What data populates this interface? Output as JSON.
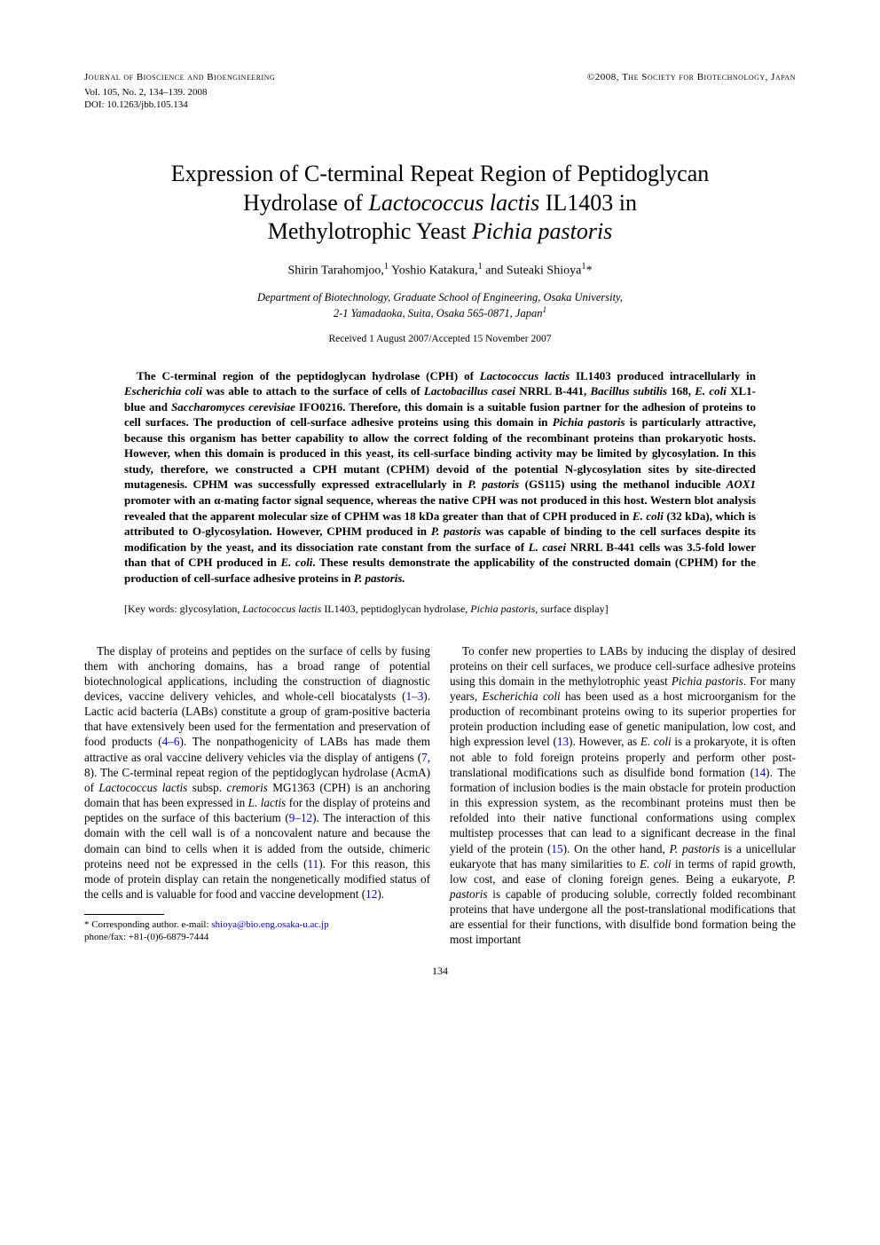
{
  "header": {
    "journal": "Journal of Bioscience and Bioengineering",
    "copyright": "©2008, The Society for Biotechnology, Japan",
    "vol": "Vol. 105, No. 2, 134–139. 2008",
    "doi": "DOI: 10.1263/jbb.105.134"
  },
  "title_lines": {
    "l1": "Expression of C-terminal Repeat Region of Peptidoglycan",
    "l2": "Hydrolase of ",
    "l2_it": "Lactococcus lactis",
    "l2_end": " IL1403 in",
    "l3": "Methylotrophic Yeast ",
    "l3_it": "Pichia pastoris"
  },
  "authors": {
    "a1": "Shirin Tarahomjoo,",
    "a1s": "1",
    "a2": " Yoshio Katakura,",
    "a2s": "1",
    "a3": " and Suteaki Shioya",
    "a3s": "1",
    "star": "*"
  },
  "affiliation": {
    "line1": "Department of Biotechnology, Graduate School of Engineering, Osaka University,",
    "line2": "2-1 Yamadaoka, Suita, Osaka 565-0871, Japan",
    "sup": "1"
  },
  "dates": "Received 1 August 2007/Accepted 15 November 2007",
  "abstract": {
    "t1": "The C-terminal region of the peptidoglycan hydrolase (CPH) of ",
    "it1": "Lactococcus lactis",
    "t2": " IL1403 produced intracellularly in ",
    "it2": "Escherichia coli",
    "t3": " was able to attach to the surface of cells of ",
    "it3": "Lactobacillus casei",
    "t4": " NRRL B-441, ",
    "it4": "Bacillus subtilis",
    "t5": " 168, ",
    "it5": "E. coli",
    "t6": " XL1-blue and ",
    "it6": "Saccharomyces cerevisiae",
    "t7": " IFO0216. Therefore, this domain is a suitable fusion partner for the adhesion of proteins to cell surfaces. The production of cell-surface adhesive proteins using this domain in ",
    "it7": "Pichia pastoris",
    "t8": " is particularly attractive, because this organism has better capability to allow the correct folding of the recombinant proteins than prokaryotic hosts. However, when this domain is produced in this yeast, its cell-surface binding activity may be limited by glycosylation. In this study, therefore, we constructed a CPH mutant (CPHM) devoid of the potential N-glycosylation sites by site-directed mutagenesis. CPHM was successfully expressed extracellularly in ",
    "it8": "P. pastoris",
    "t9": " (GS115) using the methanol inducible ",
    "it9": "AOX1",
    "t10": " promoter with an α-mating factor signal sequence, whereas the native CPH was not produced in this host. Western blot analysis revealed that the apparent molecular size of CPHM was 18 kDa greater than that of CPH produced in ",
    "it10": "E. coli",
    "t11": " (32 kDa), which is attributed to O-glycosylation. However, CPHM produced in ",
    "it11": "P. pastoris",
    "t12": " was capable of binding to the cell surfaces despite its modification by the yeast, and its dissociation rate constant from the surface of ",
    "it12": "L. casei",
    "t13": " NRRL B-441 cells was 3.5-fold lower than that of CPH produced in ",
    "it13": "E. coli",
    "t14": ". These results demonstrate the applicability of the constructed domain (CPHM) for the production of cell-surface adhesive proteins in ",
    "it14": "P. pastoris."
  },
  "keywords": {
    "label": "[Key words: ",
    "t1": "glycosylation, ",
    "it1": "Lactococcus lactis",
    "t2": " IL1403, peptidoglycan hydrolase, ",
    "it2": "Pichia pastoris",
    "t3": ", surface display]"
  },
  "col1": {
    "p1a": "The display of proteins and peptides on the surface of cells by fusing them with anchoring domains, has a broad range of potential biotechnological applications, including the construction of diagnostic devices, vaccine delivery vehicles, and whole-cell biocatalysts (",
    "r1": "1–3",
    "p1b": "). Lactic acid bacteria (LABs) constitute a group of gram-positive bacteria that have extensively been used for the fermentation and preservation of food products (",
    "r2": "4–6",
    "p1c": "). The nonpathogenicity of LABs has made them attractive as oral vaccine delivery vehicles via the display of antigens (",
    "r3": "7",
    "p1d": ", 8). The C-terminal repeat region of the peptidoglycan hydrolase (AcmA) of ",
    "it1": "Lactococcus lactis",
    "p1e": " subsp. ",
    "it2": "cremoris",
    "p1f": " MG1363 (CPH) is an anchoring domain that has been expressed in ",
    "it3": "L. lactis",
    "p1g": " for the display of proteins and peptides on the surface of this bacterium (",
    "r4": "9–12",
    "p1h": "). The interaction of this domain with the cell wall is of a noncovalent nature and because the domain can bind to cells when it is added from the outside, chimeric proteins need not be expressed in the cells (",
    "r5": "11",
    "p1i": "). For this reason, this mode of protein display can retain the nongenetically modified status of the cells and is valuable for food and vaccine development (",
    "r6": "12",
    "p1j": ")."
  },
  "col2": {
    "p1a": "To confer new properties to LABs by inducing the display of desired proteins on their cell surfaces, we produce cell-surface adhesive proteins using this domain in the methylotrophic yeast ",
    "it1": "Pichia pastoris",
    "p1b": ". For many years, ",
    "it2": "Escherichia coli",
    "p1c": " has been used as a host microorganism for the production of recombinant proteins owing to its superior properties for protein production including ease of genetic manipulation, low cost, and high expression level (",
    "r1": "13",
    "p1d": "). However, as ",
    "it3": "E. coli",
    "p1e": " is a prokaryote, it is often not able to fold foreign proteins properly and perform other post-translational modifications such as disulfide bond formation (",
    "r2": "14",
    "p1f": "). The formation of inclusion bodies is the main obstacle for protein production in this expression system, as the recombinant proteins must then be refolded into their native functional conformations using complex multistep processes that can lead to a significant decrease in the final yield of the protein (",
    "r3": "15",
    "p1g": "). On the other hand, ",
    "it4": "P. pastoris",
    "p1h": " is a unicellular eukaryote that has many similarities to ",
    "it5": "E. coli",
    "p1i": " in terms of rapid growth, low cost, and ease of cloning foreign genes. Being a eukaryote, ",
    "it6": "P. pastoris",
    "p1j": " is capable of producing soluble, correctly folded recombinant proteins that have undergone all the post-translational modifications that are essential for their functions, with disulfide bond formation being the most important"
  },
  "footnote": {
    "star": "* ",
    "label": "Corresponding author. e-mail: ",
    "email": "shioya@bio.eng.osaka-u.ac.jp",
    "phone": "phone/fax: +81-(0)6-6879-7444"
  },
  "page_num": "134",
  "colors": {
    "link": "#0000cc",
    "text": "#000000",
    "bg": "#ffffff"
  }
}
